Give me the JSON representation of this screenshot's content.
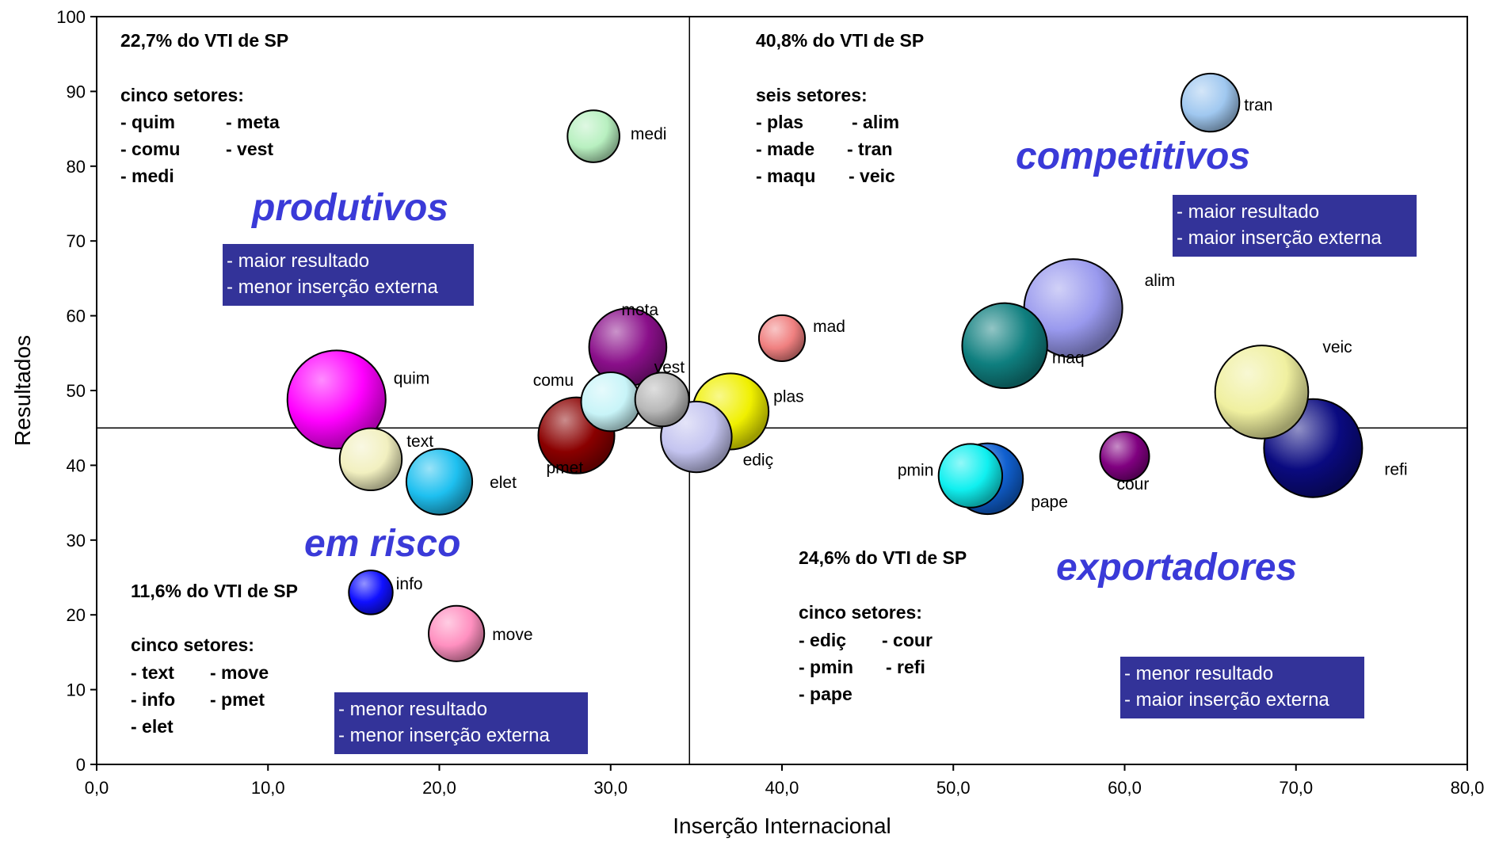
{
  "chart_data": {
    "type": "bubble",
    "xlabel": "Inserção Internacional",
    "ylabel": "Resultados",
    "xlim": [
      0,
      80
    ],
    "ylim": [
      0,
      100
    ],
    "x_ticks": [
      "0,0",
      "10,0",
      "20,0",
      "30,0",
      "40,0",
      "50,0",
      "60,0",
      "70,0",
      "80,0"
    ],
    "y_ticks": [
      "0",
      "10",
      "20",
      "30",
      "40",
      "50",
      "60",
      "70",
      "80",
      "90",
      "100"
    ],
    "divider_x": 34.6,
    "divider_y": 45,
    "points": [
      {
        "label": "quim",
        "x": 14.0,
        "y": 48.8,
        "size": 1.0,
        "color": "#ff00ff"
      },
      {
        "label": "text",
        "x": 16.0,
        "y": 40.8,
        "size": 0.4,
        "color": "#f2f0c0"
      },
      {
        "label": "elet",
        "x": 20.0,
        "y": 37.8,
        "size": 0.45,
        "color": "#1ec0f0"
      },
      {
        "label": "info",
        "x": 16.0,
        "y": 23.0,
        "size": 0.2,
        "color": "#1010ff"
      },
      {
        "label": "move",
        "x": 21.0,
        "y": 17.5,
        "size": 0.32,
        "color": "#ff90c0"
      },
      {
        "label": "medi",
        "x": 29.0,
        "y": 84.0,
        "size": 0.28,
        "color": "#b8f0c0"
      },
      {
        "label": "meta",
        "x": 31.0,
        "y": 55.8,
        "size": 0.62,
        "color": "#8a0f8a"
      },
      {
        "label": "comu",
        "x": 30.0,
        "y": 48.5,
        "size": 0.36,
        "color": "#c8f4f8"
      },
      {
        "label": "pmet",
        "x": 28.0,
        "y": 44.0,
        "size": 0.6,
        "color": "#8a0000"
      },
      {
        "label": "vest",
        "x": 33.0,
        "y": 48.8,
        "size": 0.3,
        "color": "#b8b8b8"
      },
      {
        "label": "ediç",
        "x": 35.0,
        "y": 43.8,
        "size": 0.52,
        "color": "#c4c4f0"
      },
      {
        "label": "plas",
        "x": 37.0,
        "y": 47.2,
        "size": 0.6,
        "color": "#f0f000"
      },
      {
        "label": "mad",
        "x": 40.0,
        "y": 57.0,
        "size": 0.22,
        "color": "#f08080"
      },
      {
        "label": "alim",
        "x": 57.0,
        "y": 61.0,
        "size": 1.0,
        "color": "#9999ee"
      },
      {
        "label": "maq",
        "x": 53.0,
        "y": 56.0,
        "size": 0.75,
        "color": "#0f7f7f"
      },
      {
        "label": "pape",
        "x": 52.0,
        "y": 38.2,
        "size": 0.52,
        "color": "#1060d0"
      },
      {
        "label": "pmin",
        "x": 51.0,
        "y": 38.6,
        "size": 0.42,
        "color": "#10f0f0"
      },
      {
        "label": "cour",
        "x": 60.0,
        "y": 41.2,
        "size": 0.25,
        "color": "#800080"
      },
      {
        "label": "veic",
        "x": 68.0,
        "y": 49.8,
        "size": 0.9,
        "color": "#f0f0a0"
      },
      {
        "label": "refi",
        "x": 71.0,
        "y": 42.3,
        "size": 1.0,
        "color": "#0a0a80"
      },
      {
        "label": "tran",
        "x": 65.0,
        "y": 88.5,
        "size": 0.35,
        "color": "#a0c8f0"
      }
    ],
    "quadrants": {
      "top_left": {
        "label": "produtivos",
        "share": "22,7% do VTI de SP",
        "sectors_title": "cinco setores:",
        "sectors_col1": [
          "- quim",
          "- comu",
          "- medi"
        ],
        "sectors_col2": [
          "- meta",
          "- vest"
        ],
        "box": [
          "- maior resultado",
          "- menor inserção externa"
        ]
      },
      "top_right": {
        "label": "competitivos",
        "share": "40,8% do VTI de SP",
        "sectors_title": "seis setores:",
        "sectors_col1": [
          "- plas",
          "- made",
          "- maqu"
        ],
        "sectors_col2": [
          "- alim",
          "- tran",
          "- veic"
        ],
        "box": [
          "- maior resultado",
          "- maior inserção externa"
        ]
      },
      "bottom_left": {
        "label": "em risco",
        "share": "11,6% do VTI de SP",
        "sectors_title": "cinco setores:",
        "sectors_col1": [
          "- text",
          "- info",
          "- elet"
        ],
        "sectors_col2": [
          "- move",
          "- pmet"
        ],
        "box": [
          "- menor resultado",
          "- menor inserção externa"
        ]
      },
      "bottom_right": {
        "label": "exportadores",
        "share": "24,6% do VTI de SP",
        "sectors_title": "cinco setores:",
        "sectors_col1": [
          "- ediç",
          "- pmin",
          "- pape"
        ],
        "sectors_col2": [
          "- cour",
          "- refi"
        ],
        "box": [
          "- menor resultado",
          "- maior inserção externa"
        ]
      }
    },
    "grid": false,
    "legend": "none"
  }
}
